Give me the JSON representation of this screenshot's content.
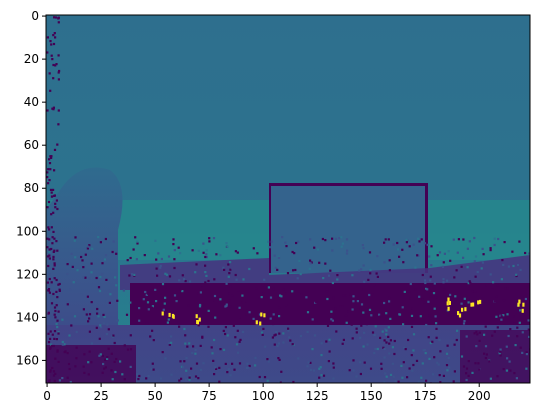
{
  "chart_data": {
    "type": "heatmap",
    "title": "",
    "xlabel": "",
    "ylabel": "",
    "colormap": "viridis",
    "image_shape": [
      171,
      224
    ],
    "xlim": [
      -0.5,
      223.5
    ],
    "ylim": [
      170.5,
      -0.5
    ],
    "x_ticks": [
      0,
      25,
      50,
      75,
      100,
      125,
      150,
      175,
      200
    ],
    "y_ticks": [
      0,
      20,
      40,
      60,
      80,
      100,
      120,
      140,
      160
    ],
    "x_tick_labels": [
      "0",
      "25",
      "50",
      "75",
      "100",
      "125",
      "150",
      "175",
      "200"
    ],
    "y_tick_labels": [
      "0",
      "20",
      "40",
      "60",
      "80",
      "100",
      "120",
      "140",
      "160"
    ],
    "value_range": [
      0,
      1
    ],
    "regions": [
      {
        "name": "upper background",
        "x": [
          0,
          223
        ],
        "y": [
          0,
          100
        ],
        "value": 0.47
      },
      {
        "name": "left column",
        "x": [
          5,
          35
        ],
        "y": [
          60,
          170
        ],
        "value": 0.33
      },
      {
        "name": "raised box",
        "x": [
          105,
          176
        ],
        "y": [
          78,
          118
        ],
        "value": 0.37
      },
      {
        "name": "dark horizontal band",
        "x": [
          40,
          223
        ],
        "y": [
          115,
          150
        ],
        "value": 0.05
      },
      {
        "name": "lower floor",
        "x": [
          0,
          223
        ],
        "y": [
          140,
          170
        ],
        "value": 0.2
      }
    ],
    "highlights": [
      {
        "x": 55,
        "y": 139,
        "value": 0.98
      },
      {
        "x": 70,
        "y": 140,
        "value": 0.98
      },
      {
        "x": 98,
        "y": 140,
        "value": 0.98
      },
      {
        "x": 185,
        "y": 133,
        "value": 0.98
      },
      {
        "x": 190,
        "y": 136,
        "value": 0.98
      },
      {
        "x": 197,
        "y": 132,
        "value": 0.98
      },
      {
        "x": 218,
        "y": 134,
        "value": 0.98
      }
    ]
  }
}
